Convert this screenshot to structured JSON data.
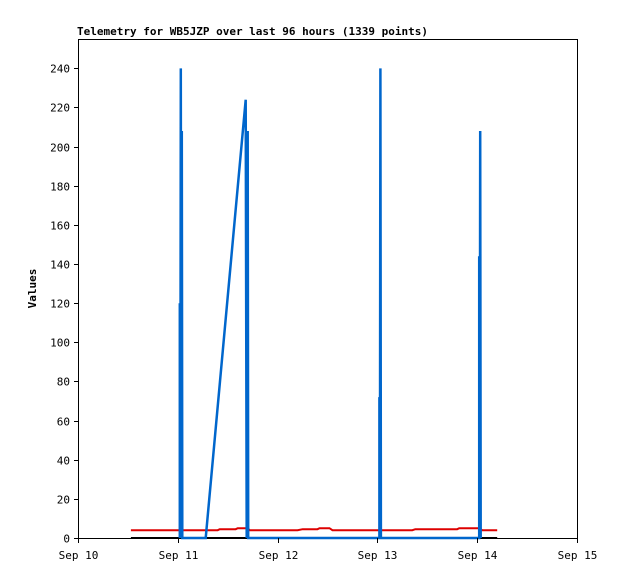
{
  "chart_data": {
    "type": "line",
    "title": "Telemetry for WB5JZP over last 96 hours (1339 points)",
    "xlabel": "",
    "ylabel": "Values",
    "x_type": "date",
    "xlim": [
      "Sep 10",
      "Sep 15"
    ],
    "ylim": [
      0,
      255
    ],
    "x_ticks": [
      "Sep 10",
      "Sep 11",
      "Sep 12",
      "Sep 13",
      "Sep 14",
      "Sep 15"
    ],
    "y_ticks": [
      0,
      20,
      40,
      60,
      80,
      100,
      120,
      140,
      160,
      180,
      200,
      220,
      240
    ],
    "grid": false,
    "legend": "none",
    "x_unit": "day of September",
    "series": [
      {
        "color": "#0066cc",
        "points": [
          [
            11.02,
            0
          ],
          [
            11.02,
            120
          ],
          [
            11.025,
            0
          ],
          [
            11.03,
            240
          ],
          [
            11.035,
            0
          ],
          [
            11.04,
            208
          ],
          [
            11.045,
            0
          ],
          [
            11.28,
            0
          ],
          [
            11.68,
            224
          ],
          [
            11.69,
            0
          ],
          [
            11.7,
            208
          ],
          [
            11.705,
            0
          ],
          [
            13.02,
            0
          ],
          [
            13.02,
            72
          ],
          [
            13.025,
            0
          ],
          [
            13.03,
            240
          ],
          [
            13.035,
            0
          ],
          [
            14.02,
            0
          ],
          [
            14.02,
            144
          ],
          [
            14.025,
            0
          ],
          [
            14.03,
            208
          ],
          [
            14.035,
            0
          ]
        ]
      },
      {
        "color": "#dd0000",
        "points": [
          [
            10.53,
            4
          ],
          [
            11.0,
            4
          ],
          [
            11.4,
            4
          ],
          [
            11.42,
            4.5
          ],
          [
            11.58,
            4.5
          ],
          [
            11.6,
            5
          ],
          [
            11.7,
            5
          ],
          [
            11.72,
            4
          ],
          [
            12.2,
            4
          ],
          [
            12.25,
            4.5
          ],
          [
            12.4,
            4.5
          ],
          [
            12.42,
            5
          ],
          [
            12.52,
            5
          ],
          [
            12.55,
            4
          ],
          [
            13.0,
            4
          ],
          [
            13.35,
            4
          ],
          [
            13.38,
            4.5
          ],
          [
            13.8,
            4.5
          ],
          [
            13.82,
            5
          ],
          [
            14.02,
            5
          ],
          [
            14.05,
            4
          ],
          [
            14.2,
            4
          ]
        ]
      },
      {
        "color": "#000000",
        "points": [
          [
            10.53,
            0
          ],
          [
            14.2,
            0
          ]
        ]
      }
    ]
  }
}
